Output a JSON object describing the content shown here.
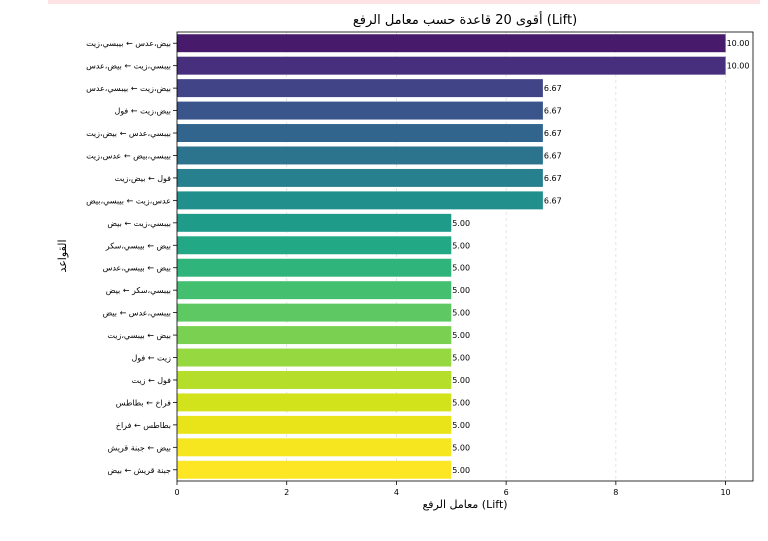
{
  "chart_data": {
    "type": "bar",
    "orientation": "horizontal",
    "title": "أقوى 20 قاعدة حسب معامل الرفع (Lift)",
    "xlabel": "معامل الرفع (Lift)",
    "ylabel": "القواعد",
    "xlim": [
      0,
      10.5
    ],
    "xticks": [
      "0",
      "2",
      "4",
      "6",
      "8",
      "10"
    ],
    "grid": "vertical-dashed",
    "palette": "viridis",
    "categories": [
      "بيض،عدس ← بيبسي،زيت",
      "بيبسي،زيت ← بيض،عدس",
      "بيض،زيت ← بيبسي،عدس",
      "بيض،زيت ← فول",
      "بيبسي،عدس ← بيض،زيت",
      "بيبسي،بيض ← عدس،زيت",
      "فول ← بيض،زيت",
      "عدس،زيت ← بيبسي،بيض",
      "بيبسي،زيت ← بيض",
      "بيض ← بيبسي،سكر",
      "بيض ← بيبسي،عدس",
      "بيبسي،سكر ← بيض",
      "بيبسي،عدس ← بيض",
      "بيض ← بيبسي،زيت",
      "زيت ← فول",
      "فول ← زيت",
      "فراخ ← بطاطس",
      "بطاطس ← فراخ",
      "بيض ← جبنة قريش",
      "جبنة قريش ← بيض"
    ],
    "values": [
      10.0,
      10.0,
      6.67,
      6.67,
      6.67,
      6.67,
      6.67,
      6.67,
      5.0,
      5.0,
      5.0,
      5.0,
      5.0,
      5.0,
      5.0,
      5.0,
      5.0,
      5.0,
      5.0,
      5.0
    ],
    "value_labels": [
      "10.00",
      "10.00",
      "6.67",
      "6.67",
      "6.67",
      "6.67",
      "6.67",
      "6.67",
      "5.00",
      "5.00",
      "5.00",
      "5.00",
      "5.00",
      "5.00",
      "5.00",
      "5.00",
      "5.00",
      "5.00",
      "5.00",
      "5.00"
    ],
    "colors": [
      "#481a6c",
      "#472f7d",
      "#414487",
      "#3a548c",
      "#32658e",
      "#2c738e",
      "#27808e",
      "#21908d",
      "#1e9c89",
      "#22a884",
      "#2fb47c",
      "#44bf70",
      "#5ec962",
      "#7ad151",
      "#95d840",
      "#b5de2b",
      "#d2e21b",
      "#e8e419",
      "#f5e620",
      "#fde725"
    ]
  }
}
